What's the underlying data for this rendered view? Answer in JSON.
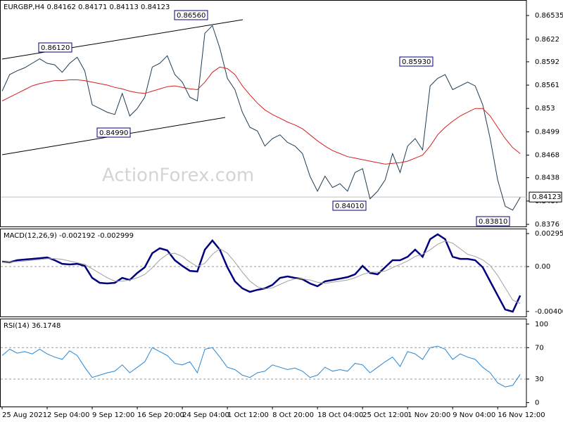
{
  "chart_data": [
    {
      "type": "line",
      "title": "EURGBP,H4 0.84162 0.84171 0.84113 0.84123",
      "watermark": "ActionForex.com",
      "series": [
        {
          "color": "#1e3c52",
          "values": [
            0.8553,
            0.8575,
            0.858,
            0.8584,
            0.859,
            0.8596,
            0.859,
            0.8588,
            0.8578,
            0.859,
            0.8598,
            0.858,
            0.8535,
            0.853,
            0.8525,
            0.8522,
            0.855,
            0.852,
            0.853,
            0.8545,
            0.8585,
            0.859,
            0.86,
            0.8575,
            0.8565,
            0.8545,
            0.854,
            0.863,
            0.864,
            0.861,
            0.857,
            0.8555,
            0.8525,
            0.8505,
            0.85,
            0.848,
            0.849,
            0.8495,
            0.8485,
            0.848,
            0.847,
            0.844,
            0.842,
            0.844,
            0.8425,
            0.843,
            0.842,
            0.8445,
            0.845,
            0.841,
            0.842,
            0.8435,
            0.847,
            0.8445,
            0.848,
            0.849,
            0.8475,
            0.856,
            0.857,
            0.8575,
            0.8555,
            0.856,
            0.8565,
            0.856,
            0.8535,
            0.849,
            0.8435,
            0.84,
            0.8395,
            0.8412
          ]
        },
        {
          "color": "#d42020",
          "values": [
            0.854,
            0.8545,
            0.855,
            0.8555,
            0.856,
            0.8563,
            0.8565,
            0.8567,
            0.8567,
            0.8568,
            0.8568,
            0.8567,
            0.8565,
            0.8563,
            0.8561,
            0.8558,
            0.8556,
            0.8553,
            0.8551,
            0.855,
            0.8553,
            0.8556,
            0.8559,
            0.856,
            0.8558,
            0.8556,
            0.8555,
            0.8565,
            0.8578,
            0.8585,
            0.8583,
            0.8575,
            0.856,
            0.8548,
            0.8537,
            0.8528,
            0.8522,
            0.8517,
            0.8512,
            0.8508,
            0.8503,
            0.8495,
            0.8487,
            0.848,
            0.8474,
            0.847,
            0.8466,
            0.8464,
            0.8462,
            0.846,
            0.8458,
            0.8456,
            0.8457,
            0.8458,
            0.846,
            0.8464,
            0.8468,
            0.848,
            0.8495,
            0.8505,
            0.8513,
            0.852,
            0.8525,
            0.853,
            0.853,
            0.852,
            0.8505,
            0.849,
            0.8478,
            0.847
          ]
        }
      ],
      "ylim": [
        0.83732,
        0.86741
      ],
      "yticks": [
        0.86535,
        0.8622,
        0.8592,
        0.8561,
        0.853,
        0.8499,
        0.8468,
        0.8438,
        0.8407,
        0.8376
      ],
      "current_price": 0.84123,
      "annotations": [
        "0.86120",
        "0.84990",
        "0.86560",
        "0.85930",
        "0.84010",
        "0.83810"
      ]
    },
    {
      "type": "line",
      "title": "MACD(12,26,9) -0.002192 -0.002999",
      "series": [
        {
          "color": "#000080",
          "values": [
            0.00044,
            0.00038,
            0.00057,
            0.00063,
            0.00069,
            0.00075,
            0.00082,
            0.00057,
            0.00025,
            0.00019,
            0.00025,
            6e-05,
            -0.00101,
            -0.00145,
            -0.00151,
            -0.00145,
            -0.00101,
            -0.0012,
            -0.00057,
            -6e-05,
            0.0012,
            0.00164,
            0.00145,
            0.00057,
            6e-05,
            -0.00038,
            -0.00044,
            0.00151,
            0.00233,
            0.00151,
            -6e-05,
            -0.00132,
            -0.00195,
            -0.00226,
            -0.00208,
            -0.00195,
            -0.00164,
            -0.00101,
            -0.00088,
            -0.00101,
            -0.00113,
            -0.00151,
            -0.00176,
            -0.00132,
            -0.0012,
            -0.00107,
            -0.00094,
            -0.00069,
            6e-05,
            -0.00057,
            -0.00069,
            -6e-05,
            0.00057,
            0.00057,
            0.00088,
            0.00151,
            0.00088,
            0.00245,
            0.00289,
            0.00245,
            0.00088,
            0.00069,
            0.00069,
            0.00057,
            -6e-05,
            -0.00132,
            -0.00258,
            -0.00384,
            -0.00403,
            -0.00258
          ]
        },
        {
          "color": "#a0a0a0",
          "values": [
            0.0004,
            0.0004,
            0.00045,
            0.0005,
            0.00057,
            0.00063,
            0.0007,
            0.00072,
            0.00065,
            0.0005,
            0.00035,
            0.0002,
            -0.0002,
            -0.0006,
            -0.001,
            -0.0013,
            -0.0013,
            -0.0012,
            -0.001,
            -0.0007,
            -0.0001,
            0.0006,
            0.0011,
            0.0012,
            0.0009,
            0.0004,
            0,
            0.0003,
            0.0011,
            0.0016,
            0.0012,
            0.0004,
            -0.0005,
            -0.0013,
            -0.0018,
            -0.002,
            -0.0019,
            -0.0016,
            -0.0013,
            -0.0011,
            -0.0011,
            -0.0012,
            -0.0014,
            -0.0015,
            -0.0014,
            -0.0013,
            -0.0012,
            -0.001,
            -0.0007,
            -0.0005,
            -0.0005,
            -0.0004,
            -0.0001,
            0.0002,
            0.0005,
            0.0009,
            0.0011,
            0.0015,
            0.002,
            0.0023,
            0.0021,
            0.0016,
            0.0011,
            0.0009,
            0.0006,
            0.0001,
            -0.0008,
            -0.0019,
            -0.003,
            -0.0033
          ]
        }
      ],
      "ylim": [
        -0.004464,
        0.0034
      ],
      "yticks": [
        0.002955,
        {
          "value": 0,
          "label": "0.00"
        },
        -0.004009
      ],
      "levels": [
        0
      ]
    },
    {
      "type": "line",
      "title": "RSI(14) 36.1748",
      "categories": [
        "25 Aug 2021",
        null,
        null,
        null,
        null,
        null,
        "2 Sep 04:00",
        null,
        null,
        null,
        null,
        null,
        "9 Sep 12:00",
        null,
        null,
        null,
        null,
        null,
        "16 Sep 20:00",
        null,
        null,
        null,
        null,
        null,
        "24 Sep 04:00",
        null,
        null,
        null,
        null,
        null,
        "1 Oct 12:00",
        null,
        null,
        null,
        null,
        null,
        "8 Oct 20:00",
        null,
        null,
        null,
        null,
        null,
        "18 Oct 04:00",
        null,
        null,
        null,
        null,
        null,
        "25 Oct 12:00",
        null,
        null,
        null,
        null,
        null,
        "1 Nov 20:00",
        null,
        null,
        null,
        null,
        null,
        "9 Nov 04:00",
        null,
        null,
        null,
        null,
        null,
        "16 Nov 12:00",
        null,
        null,
        null
      ],
      "series": [
        {
          "color": "#2a86d1",
          "values": [
            60,
            68,
            63,
            65,
            62,
            68,
            62,
            58,
            55,
            66,
            60,
            45,
            32,
            35,
            38,
            40,
            48,
            38,
            45,
            52,
            70,
            65,
            60,
            50,
            48,
            52,
            38,
            68,
            70,
            58,
            45,
            42,
            35,
            32,
            38,
            40,
            48,
            45,
            42,
            44,
            40,
            32,
            35,
            45,
            40,
            42,
            40,
            50,
            48,
            38,
            45,
            52,
            58,
            46,
            65,
            62,
            55,
            70,
            72,
            68,
            55,
            62,
            58,
            55,
            45,
            38,
            25,
            20,
            22,
            36
          ]
        }
      ],
      "ylim": [
        -5,
        107
      ],
      "yticks": [
        100,
        70,
        30,
        0
      ],
      "levels": [
        30,
        70
      ]
    }
  ]
}
